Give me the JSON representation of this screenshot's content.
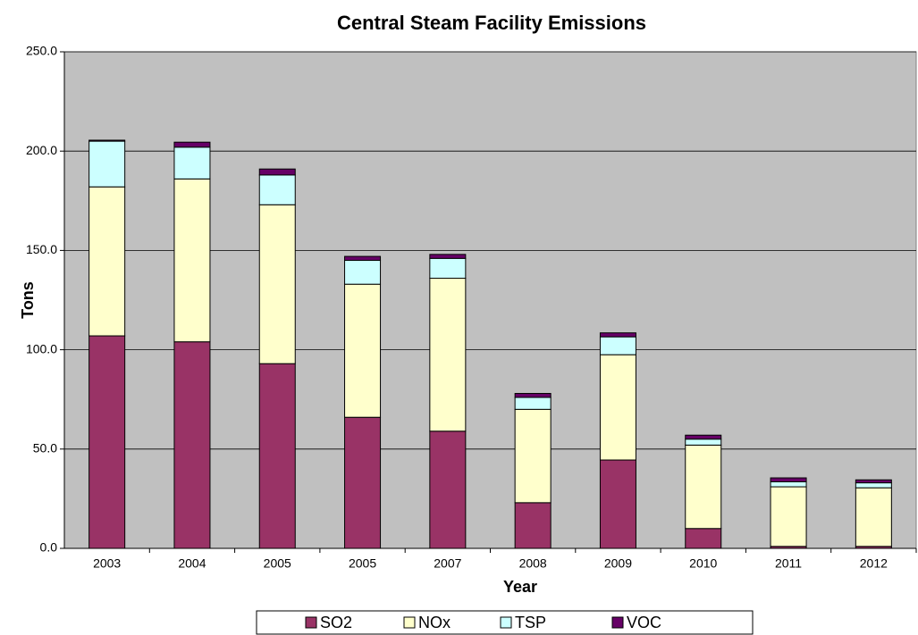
{
  "chart_data": {
    "type": "stacked_bar",
    "title": "Central Steam Facility Emissions",
    "x_label": "Year",
    "y_label": "Tons",
    "categories": [
      "2003",
      "2004",
      "2005",
      "2005",
      "2007",
      "2008",
      "2009",
      "2010",
      "2011",
      "2012"
    ],
    "series": [
      {
        "name": "SO2",
        "color": "#993366",
        "values": [
          107,
          104,
          93,
          66,
          59,
          23,
          44.5,
          10,
          1,
          1
        ]
      },
      {
        "name": "NOx",
        "color": "#ffffcc",
        "values": [
          75,
          82,
          80,
          67,
          77,
          47,
          53,
          42,
          30,
          29.5
        ]
      },
      {
        "name": "TSP",
        "color": "#ccffff",
        "values": [
          23,
          16,
          15,
          12,
          10,
          6,
          9,
          3,
          2.5,
          2.5
        ]
      },
      {
        "name": "VOC",
        "color": "#660066",
        "values": [
          0.5,
          2.5,
          3,
          2,
          2,
          2,
          2,
          2,
          2,
          1.5
        ]
      }
    ],
    "ylim": [
      0,
      250
    ],
    "yticks": [
      {
        "value": 0,
        "label": "0.0"
      },
      {
        "value": 50,
        "label": "50.0"
      },
      {
        "value": 100,
        "label": "100.0"
      },
      {
        "value": 150,
        "label": "150.0"
      },
      {
        "value": 200,
        "label": "200.0"
      },
      {
        "value": 250,
        "label": "250.0"
      }
    ],
    "grid": true,
    "legend_position": "bottom"
  }
}
